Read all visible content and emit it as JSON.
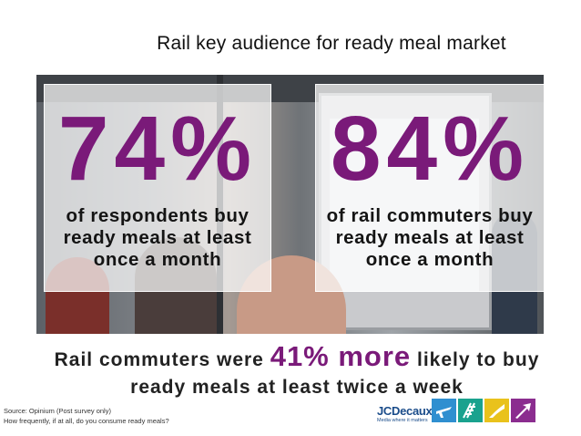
{
  "slide": {
    "title": "Rail key audience for ready meal market",
    "stats": [
      {
        "value": "74%",
        "caption": "of respondents buy ready meals at least once a month"
      },
      {
        "value": "84%",
        "caption": "of rail commuters buy ready meals at least once a month"
      }
    ],
    "statement": {
      "before": "Rail commuters were ",
      "highlight": "41% more",
      "after": " likely to buy ready meals at least twice a week"
    },
    "source": {
      "line1": "Source: Opinium (Post survey only)",
      "line2": "How frequently, if at all, do you consume ready meals?"
    },
    "logo": {
      "name": "JCDecaux",
      "tagline": "Media where it matters"
    },
    "tiles": [
      "plane-icon",
      "rail-icon",
      "street-icon",
      "arrow-icon"
    ],
    "colors": {
      "accent": "#7a1a79",
      "brand": "#1a4c8a"
    }
  }
}
